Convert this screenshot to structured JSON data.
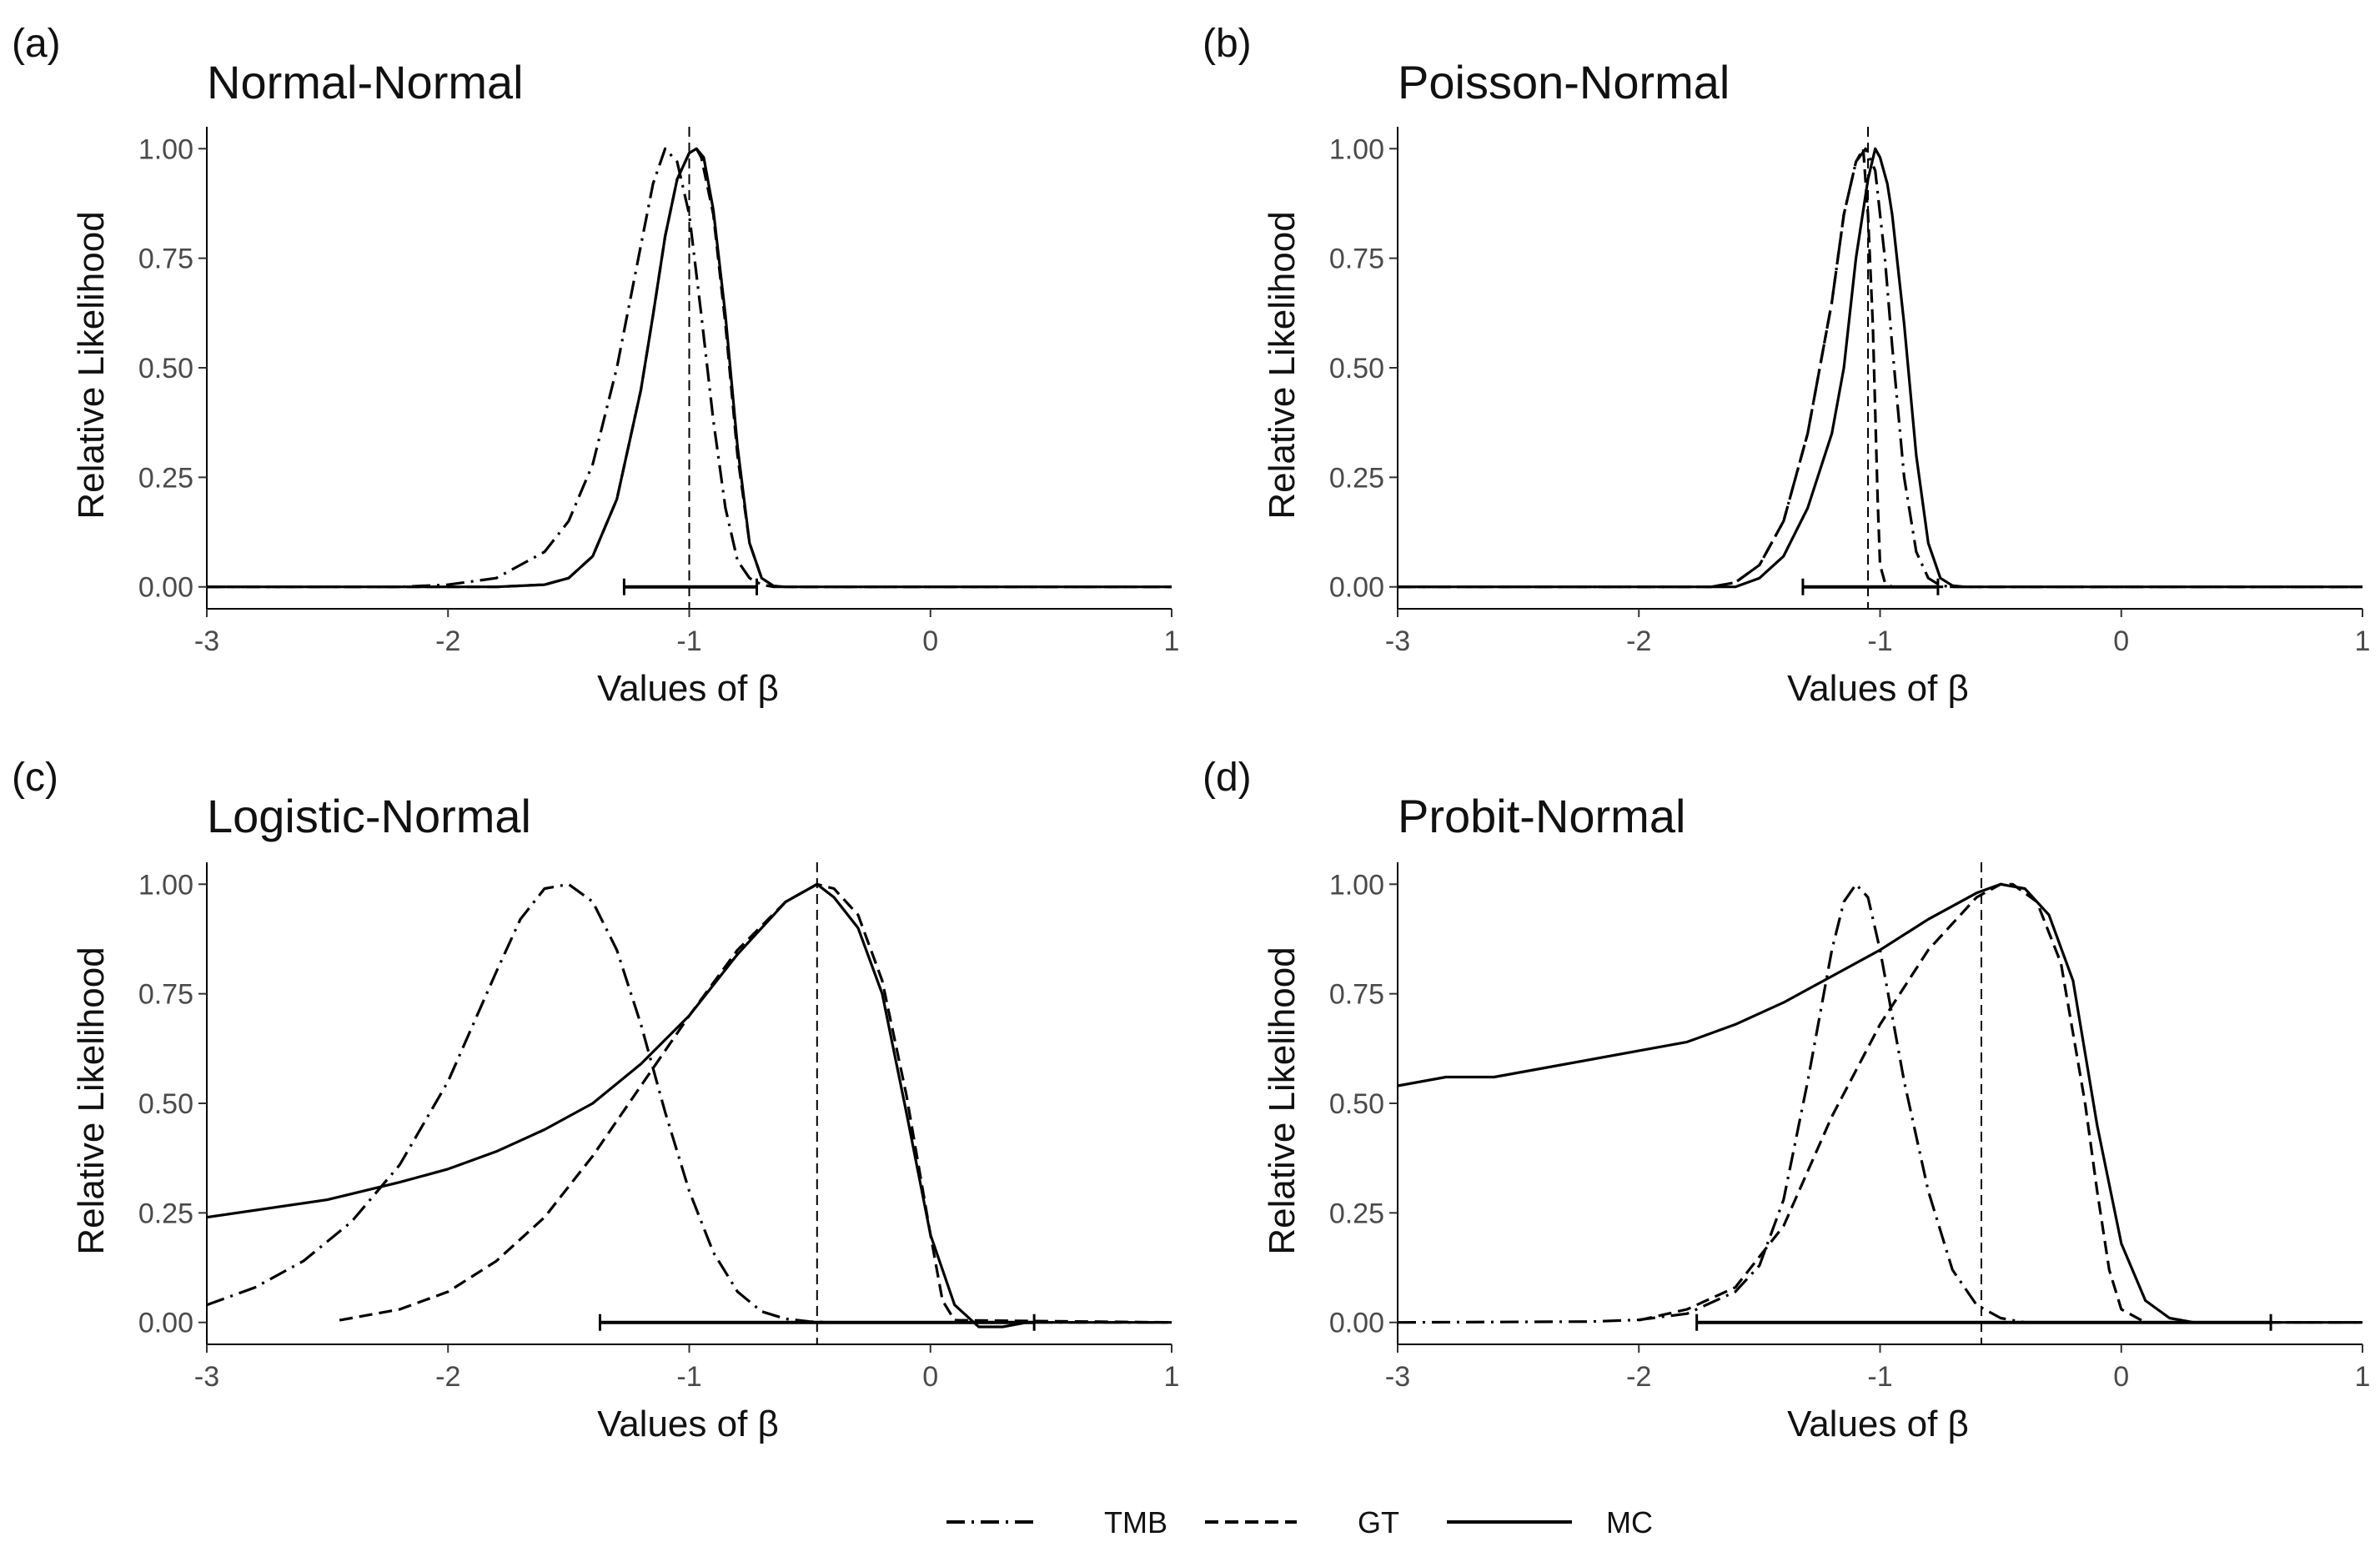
{
  "legend": [
    {
      "name": "TMB",
      "style": "dotdash"
    },
    {
      "name": "GT",
      "style": "dashed"
    },
    {
      "name": "MC",
      "style": "solid"
    }
  ],
  "chart_data": [
    {
      "letter": "(a)",
      "title": "Normal-Normal",
      "type": "line",
      "xlabel": "Values of β",
      "ylabel": "Relative Likelihood",
      "xlim": [
        -3,
        1
      ],
      "ylim": [
        -0.05,
        1.05
      ],
      "xticks": [
        -3,
        -2,
        -1,
        0,
        1
      ],
      "xtick_labels": [
        "-3",
        "-2",
        "-1",
        "0",
        "1"
      ],
      "yticks": [
        0,
        0.25,
        0.5,
        0.75,
        1
      ],
      "ytick_labels": [
        "0.00",
        "0.25",
        "0.50",
        "0.75",
        "1.00"
      ],
      "vline": -1.0,
      "interval": [
        -1.27,
        -0.72
      ],
      "series": [
        {
          "name": "TMB",
          "style": "dotdash",
          "x": [
            -3,
            -2.2,
            -2,
            -1.8,
            -1.6,
            -1.5,
            -1.4,
            -1.3,
            -1.2,
            -1.15,
            -1.1,
            -1.05,
            -1.0,
            -0.95,
            -0.9,
            -0.85,
            -0.8,
            -0.75,
            -0.7,
            -0.65,
            -0.6,
            1
          ],
          "y": [
            0,
            0,
            0.005,
            0.02,
            0.08,
            0.15,
            0.28,
            0.5,
            0.78,
            0.92,
            1.0,
            0.97,
            0.85,
            0.62,
            0.38,
            0.18,
            0.06,
            0.02,
            0.005,
            0,
            0,
            0
          ]
        },
        {
          "name": "GT",
          "style": "dashed",
          "x": [
            -3,
            -1.8,
            -1.6,
            -1.5,
            -1.4,
            -1.3,
            -1.2,
            -1.15,
            -1.1,
            -1.05,
            -1.0,
            -0.97,
            -0.95,
            -0.9,
            -0.85,
            -0.8,
            -0.75,
            -0.7,
            -0.65,
            -0.6,
            1
          ],
          "y": [
            0,
            0,
            0.005,
            0.02,
            0.07,
            0.2,
            0.45,
            0.62,
            0.8,
            0.93,
            0.99,
            1.0,
            0.98,
            0.85,
            0.6,
            0.3,
            0.1,
            0.02,
            0.002,
            0,
            0
          ]
        },
        {
          "name": "MC",
          "style": "solid",
          "x": [
            -3,
            -1.8,
            -1.6,
            -1.5,
            -1.4,
            -1.3,
            -1.2,
            -1.15,
            -1.1,
            -1.05,
            -1.0,
            -0.97,
            -0.94,
            -0.9,
            -0.85,
            -0.8,
            -0.75,
            -0.7,
            -0.65,
            -0.6,
            1
          ],
          "y": [
            0,
            0,
            0.005,
            0.02,
            0.07,
            0.2,
            0.45,
            0.62,
            0.8,
            0.93,
            0.99,
            1.0,
            0.98,
            0.86,
            0.62,
            0.32,
            0.1,
            0.02,
            0.002,
            0,
            0
          ]
        }
      ]
    },
    {
      "letter": "(b)",
      "title": "Poisson-Normal",
      "type": "line",
      "xlabel": "Values of β",
      "ylabel": "Relative Likelihood",
      "xlim": [
        -3,
        1
      ],
      "ylim": [
        -0.05,
        1.05
      ],
      "xticks": [
        -3,
        -2,
        -1,
        0,
        1
      ],
      "xtick_labels": [
        "-3",
        "-2",
        "-1",
        "0",
        "1"
      ],
      "yticks": [
        0,
        0.25,
        0.5,
        0.75,
        1
      ],
      "ytick_labels": [
        "0.00",
        "0.25",
        "0.50",
        "0.75",
        "1.00"
      ],
      "vline": -1.05,
      "interval": [
        -1.32,
        -0.76
      ],
      "series": [
        {
          "name": "TMB",
          "style": "dotdash",
          "x": [
            -3,
            -1.7,
            -1.6,
            -1.5,
            -1.4,
            -1.3,
            -1.2,
            -1.15,
            -1.1,
            -1.06,
            -1.02,
            -0.98,
            -0.95,
            -0.9,
            -0.85,
            -0.8,
            -0.75,
            -0.7,
            0.7,
            0.8,
            1
          ],
          "y": [
            0,
            0,
            0.01,
            0.05,
            0.15,
            0.35,
            0.65,
            0.85,
            0.97,
            1.0,
            0.95,
            0.75,
            0.55,
            0.25,
            0.08,
            0.02,
            0.003,
            0,
            0,
            0,
            0
          ]
        },
        {
          "name": "GT",
          "style": "dashed",
          "x": [
            -3,
            -1.7,
            -1.6,
            -1.5,
            -1.4,
            -1.3,
            -1.2,
            -1.15,
            -1.1,
            -1.07,
            -1.05,
            -1.03,
            -1.02,
            -1.01,
            -1.0,
            -0.98,
            -0.95,
            -0.9,
            -0.85,
            -0.8,
            1
          ],
          "y": [
            0,
            0,
            0.01,
            0.05,
            0.15,
            0.35,
            0.65,
            0.85,
            0.97,
            1.0,
            0.85,
            0.6,
            0.4,
            0.2,
            0.05,
            0.01,
            0,
            0,
            0,
            0,
            0
          ]
        },
        {
          "name": "MC",
          "style": "solid",
          "x": [
            -3,
            -1.6,
            -1.5,
            -1.4,
            -1.3,
            -1.2,
            -1.15,
            -1.1,
            -1.05,
            -1.02,
            -1.0,
            -0.97,
            -0.95,
            -0.9,
            -0.85,
            -0.8,
            -0.75,
            -0.7,
            -0.65,
            1
          ],
          "y": [
            0,
            0,
            0.02,
            0.07,
            0.18,
            0.35,
            0.5,
            0.75,
            0.93,
            1.0,
            0.98,
            0.92,
            0.85,
            0.6,
            0.3,
            0.1,
            0.02,
            0.003,
            0,
            0
          ]
        }
      ]
    },
    {
      "letter": "(c)",
      "title": "Logistic-Normal",
      "type": "line",
      "xlabel": "Values of β",
      "ylabel": "Relative Likelihood",
      "xlim": [
        -3,
        1
      ],
      "ylim": [
        -0.05,
        1.05
      ],
      "xticks": [
        -3,
        -2,
        -1,
        0,
        1
      ],
      "xtick_labels": [
        "-3",
        "-2",
        "-1",
        "0",
        "1"
      ],
      "yticks": [
        0,
        0.25,
        0.5,
        0.75,
        1
      ],
      "ytick_labels": [
        "0.00",
        "0.25",
        "0.50",
        "0.75",
        "1.00"
      ],
      "vline": -0.47,
      "interval": [
        -1.37,
        0.43
      ],
      "series": [
        {
          "name": "TMB",
          "style": "dotdash",
          "x": [
            -3,
            -2.8,
            -2.6,
            -2.4,
            -2.2,
            -2.0,
            -1.8,
            -1.7,
            -1.6,
            -1.5,
            -1.4,
            -1.3,
            -1.2,
            -1.1,
            -1.0,
            -0.9,
            -0.8,
            -0.7,
            -0.6,
            -0.5,
            -0.4,
            1
          ],
          "y": [
            0.04,
            0.08,
            0.14,
            0.23,
            0.36,
            0.55,
            0.8,
            0.92,
            0.99,
            1.0,
            0.96,
            0.85,
            0.68,
            0.48,
            0.3,
            0.16,
            0.07,
            0.025,
            0.008,
            0.002,
            0,
            0
          ]
        },
        {
          "name": "GT",
          "style": "dashed",
          "x": [
            -2.45,
            -2.2,
            -2.0,
            -1.8,
            -1.6,
            -1.4,
            -1.2,
            -1.0,
            -0.8,
            -0.6,
            -0.47,
            -0.4,
            -0.3,
            -0.2,
            -0.1,
            0,
            0.05,
            0.1,
            1
          ],
          "y": [
            0.005,
            0.03,
            0.07,
            0.14,
            0.24,
            0.38,
            0.54,
            0.7,
            0.85,
            0.96,
            1.0,
            0.99,
            0.93,
            0.78,
            0.52,
            0.2,
            0.05,
            0.005,
            0
          ]
        },
        {
          "name": "MC",
          "style": "solid",
          "x": [
            -3,
            -2.5,
            -2.2,
            -2.0,
            -1.8,
            -1.6,
            -1.4,
            -1.2,
            -1.0,
            -0.8,
            -0.6,
            -0.47,
            -0.4,
            -0.3,
            -0.2,
            -0.1,
            0,
            0.1,
            0.2,
            0.3,
            0.4,
            1
          ],
          "y": [
            0.24,
            0.28,
            0.32,
            0.35,
            0.39,
            0.44,
            0.5,
            0.59,
            0.7,
            0.84,
            0.96,
            1.0,
            0.97,
            0.9,
            0.75,
            0.48,
            0.2,
            0.04,
            -0.01,
            -0.01,
            0,
            0
          ]
        }
      ]
    },
    {
      "letter": "(d)",
      "title": "Probit-Normal",
      "type": "line",
      "xlabel": "Values of β",
      "ylabel": "Relative Likelihood",
      "xlim": [
        -3,
        1
      ],
      "ylim": [
        -0.05,
        1.05
      ],
      "xticks": [
        -3,
        -2,
        -1,
        0,
        1
      ],
      "xtick_labels": [
        "-3",
        "-2",
        "-1",
        "0",
        "1"
      ],
      "yticks": [
        0,
        0.25,
        0.5,
        0.75,
        1
      ],
      "ytick_labels": [
        "0.00",
        "0.25",
        "0.50",
        "0.75",
        "1.00"
      ],
      "vline": -0.58,
      "interval": [
        -1.76,
        0.62
      ],
      "series": [
        {
          "name": "TMB",
          "style": "dotdash",
          "x": [
            -3,
            -2.2,
            -2.0,
            -1.8,
            -1.6,
            -1.5,
            -1.4,
            -1.3,
            -1.2,
            -1.15,
            -1.1,
            -1.05,
            -1.0,
            -0.95,
            -0.9,
            -0.8,
            -0.7,
            -0.6,
            -0.5,
            -0.4,
            1
          ],
          "y": [
            0,
            0.002,
            0.006,
            0.02,
            0.07,
            0.13,
            0.28,
            0.55,
            0.85,
            0.96,
            1.0,
            0.97,
            0.85,
            0.7,
            0.55,
            0.3,
            0.12,
            0.04,
            0.01,
            0,
            0
          ]
        },
        {
          "name": "GT",
          "style": "dashed",
          "x": [
            -2.0,
            -1.8,
            -1.6,
            -1.4,
            -1.2,
            -1.0,
            -0.8,
            -0.6,
            -0.5,
            -0.45,
            -0.35,
            -0.25,
            -0.15,
            -0.1,
            -0.05,
            0,
            0.1,
            1
          ],
          "y": [
            0.005,
            0.03,
            0.08,
            0.22,
            0.47,
            0.68,
            0.85,
            0.97,
            1.0,
            1.0,
            0.96,
            0.82,
            0.5,
            0.3,
            0.12,
            0.03,
            0,
            0
          ]
        },
        {
          "name": "MC",
          "style": "solid",
          "x": [
            -3,
            -2.8,
            -2.6,
            -2.4,
            -2.2,
            -2.0,
            -1.8,
            -1.6,
            -1.4,
            -1.2,
            -1.0,
            -0.8,
            -0.6,
            -0.5,
            -0.4,
            -0.3,
            -0.2,
            -0.1,
            0,
            0.1,
            0.2,
            0.3,
            1
          ],
          "y": [
            0.54,
            0.56,
            0.56,
            0.58,
            0.6,
            0.62,
            0.64,
            0.68,
            0.73,
            0.79,
            0.85,
            0.92,
            0.98,
            1.0,
            0.99,
            0.93,
            0.78,
            0.45,
            0.18,
            0.05,
            0.01,
            0,
            0
          ]
        }
      ]
    }
  ]
}
